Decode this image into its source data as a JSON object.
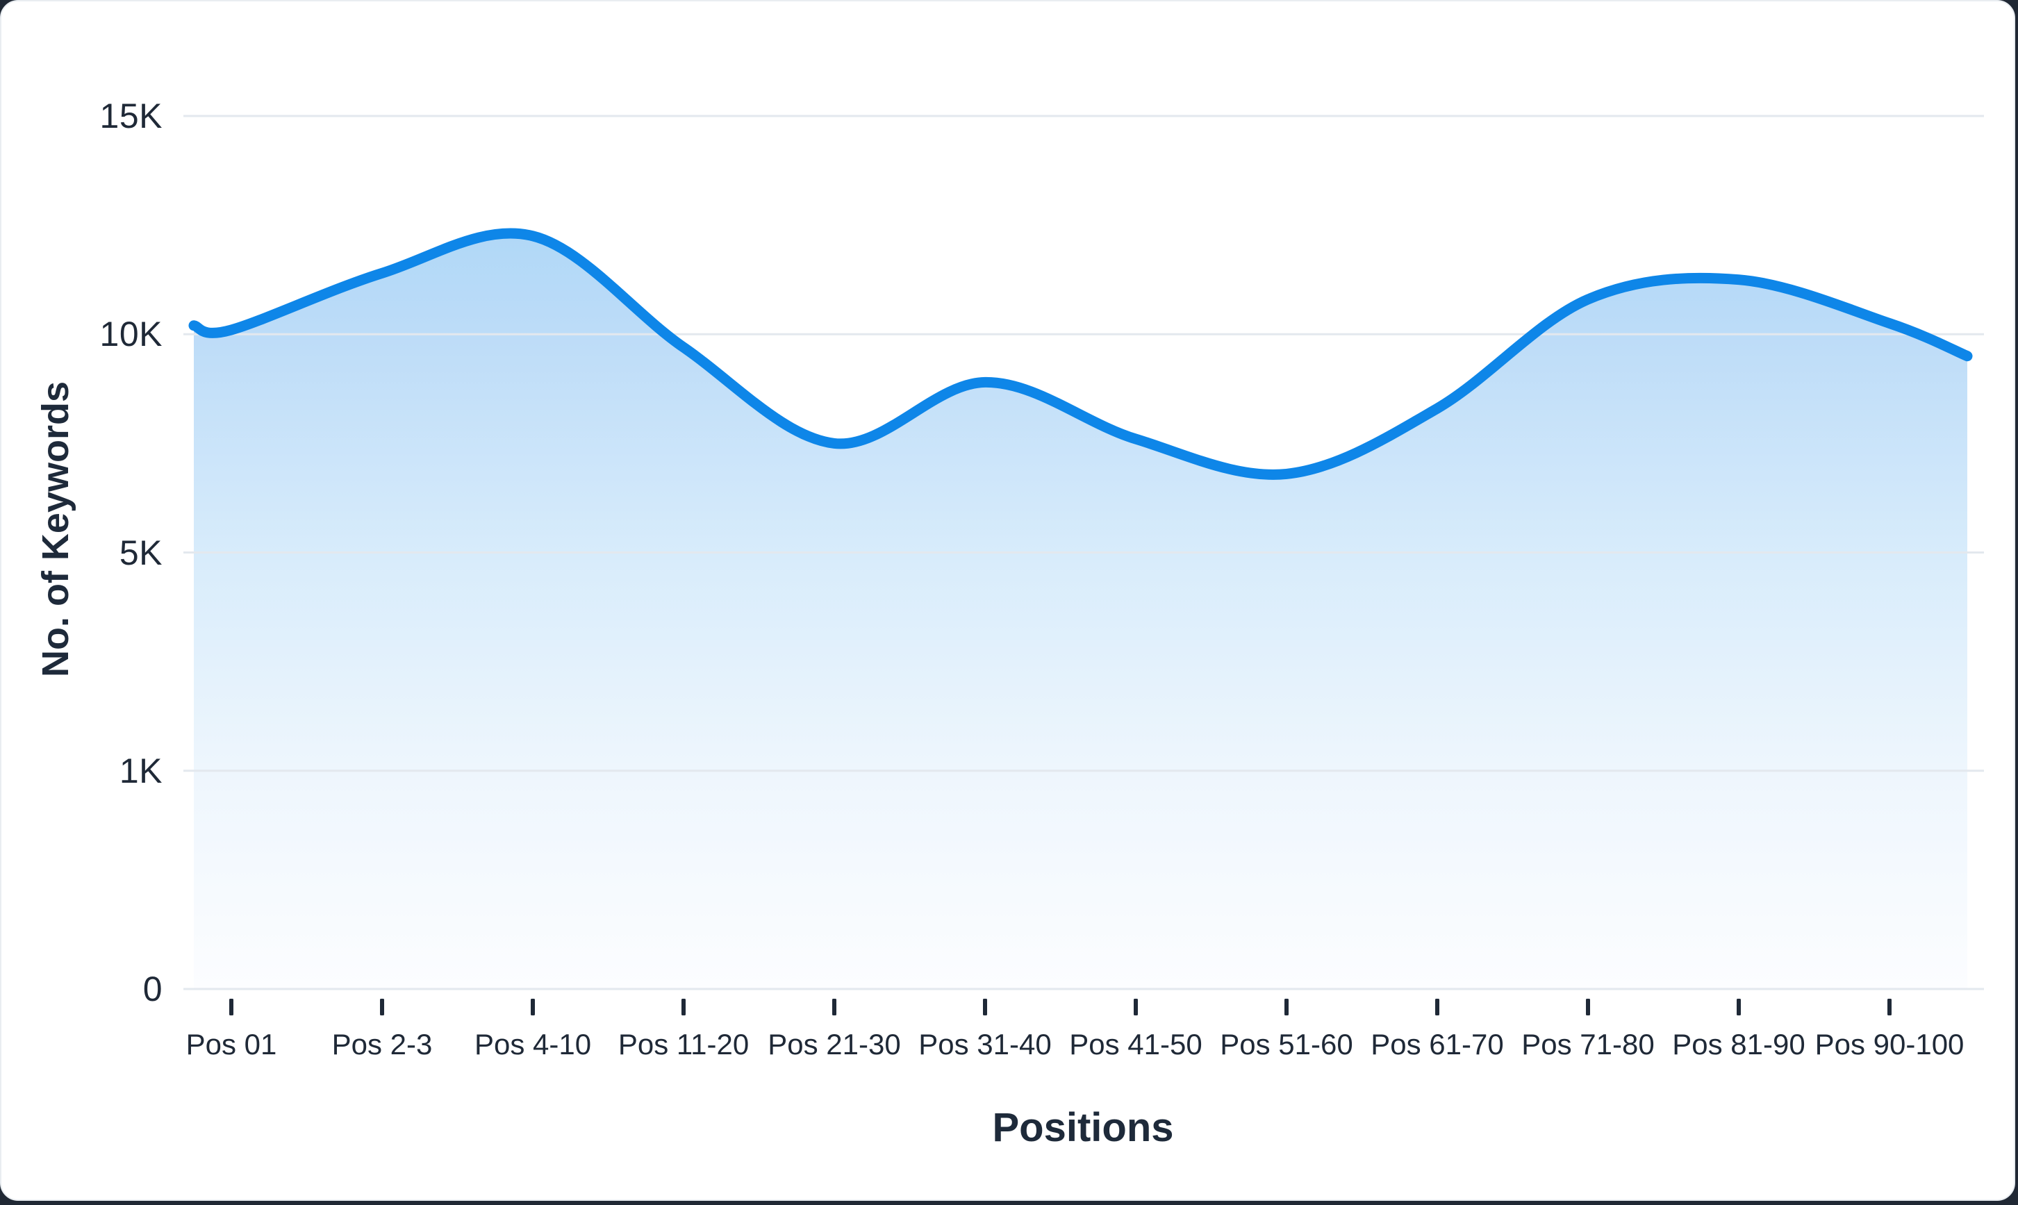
{
  "chart_data": {
    "type": "area",
    "title": "",
    "xlabel": "Positions",
    "ylabel": "No. of Keywords",
    "categories": [
      "Pos 01",
      "Pos 2-3",
      "Pos 4-10",
      "Pos 11-20",
      "Pos 21-30",
      "Pos 31-40",
      "Pos 41-50",
      "Pos 51-60",
      "Pos 61-70",
      "Pos 71-80",
      "Pos 81-90",
      "Pos 90-100"
    ],
    "series": [
      {
        "name": "No. of Keywords",
        "values": [
          10100,
          11400,
          12250,
          9700,
          7500,
          8900,
          7600,
          6800,
          8300,
          10800,
          11250,
          10250
        ],
        "edge_start_value": 10200,
        "edge_end_value": 9500
      }
    ],
    "y_ticks": [
      {
        "value": 0,
        "label": "0"
      },
      {
        "value": 1000,
        "label": "1K"
      },
      {
        "value": 5000,
        "label": "5K"
      },
      {
        "value": 10000,
        "label": "10K"
      },
      {
        "value": 15000,
        "label": "15K"
      }
    ],
    "y_axis_note": "tick values evenly spaced (non-linear scale)",
    "grid": true,
    "legend": false,
    "colors": {
      "line": "#0e86e8",
      "fill_top": "#b0d8f7",
      "fill_upper": "#bddcf8",
      "fill_mid": "#d8ecfb",
      "fill_low": "#eef6fd",
      "fill_bottom": "#fcfdff",
      "gridline": "#e3e8ee",
      "tick": "#1f2937",
      "text": "#1f2937",
      "card_bg": "#ffffff",
      "page_bg": "#202834"
    }
  }
}
